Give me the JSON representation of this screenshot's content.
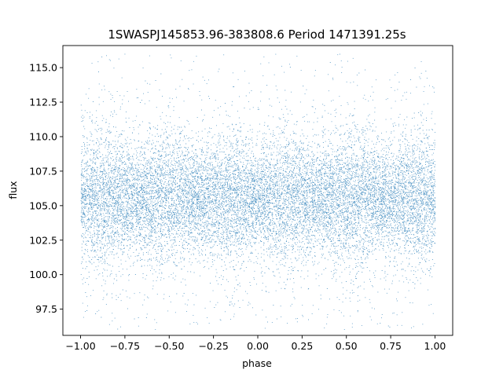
{
  "chart_data": {
    "type": "scatter",
    "title": "1SWASPJ145853.96-383808.6 Period 1471391.25s",
    "xlabel": "phase",
    "ylabel": "flux",
    "xlim": [
      -1.1,
      1.1
    ],
    "ylim": [
      95.6,
      116.6
    ],
    "x_ticks": [
      -1.0,
      -0.75,
      -0.5,
      -0.25,
      0.0,
      0.25,
      0.5,
      0.75,
      1.0
    ],
    "x_tick_labels": [
      "−1.00",
      "−0.75",
      "−0.50",
      "−0.25",
      "0.00",
      "0.25",
      "0.50",
      "0.75",
      "1.00"
    ],
    "y_ticks": [
      97.5,
      100.0,
      102.5,
      105.0,
      107.5,
      110.0,
      112.5,
      115.0
    ],
    "y_tick_labels": [
      "97.5",
      "100.0",
      "102.5",
      "105.0",
      "107.5",
      "110.0",
      "112.5",
      "115.0"
    ],
    "grid": false,
    "legend": "none",
    "marker_color": "#1f77b4",
    "series": [
      {
        "x_range": [
          -1.0,
          1.0
        ],
        "y_range": [
          96.0,
          116.0
        ],
        "y_core_range": [
          102.5,
          110.0
        ],
        "y_center": 105.5,
        "approx_points": 60000
      }
    ]
  }
}
